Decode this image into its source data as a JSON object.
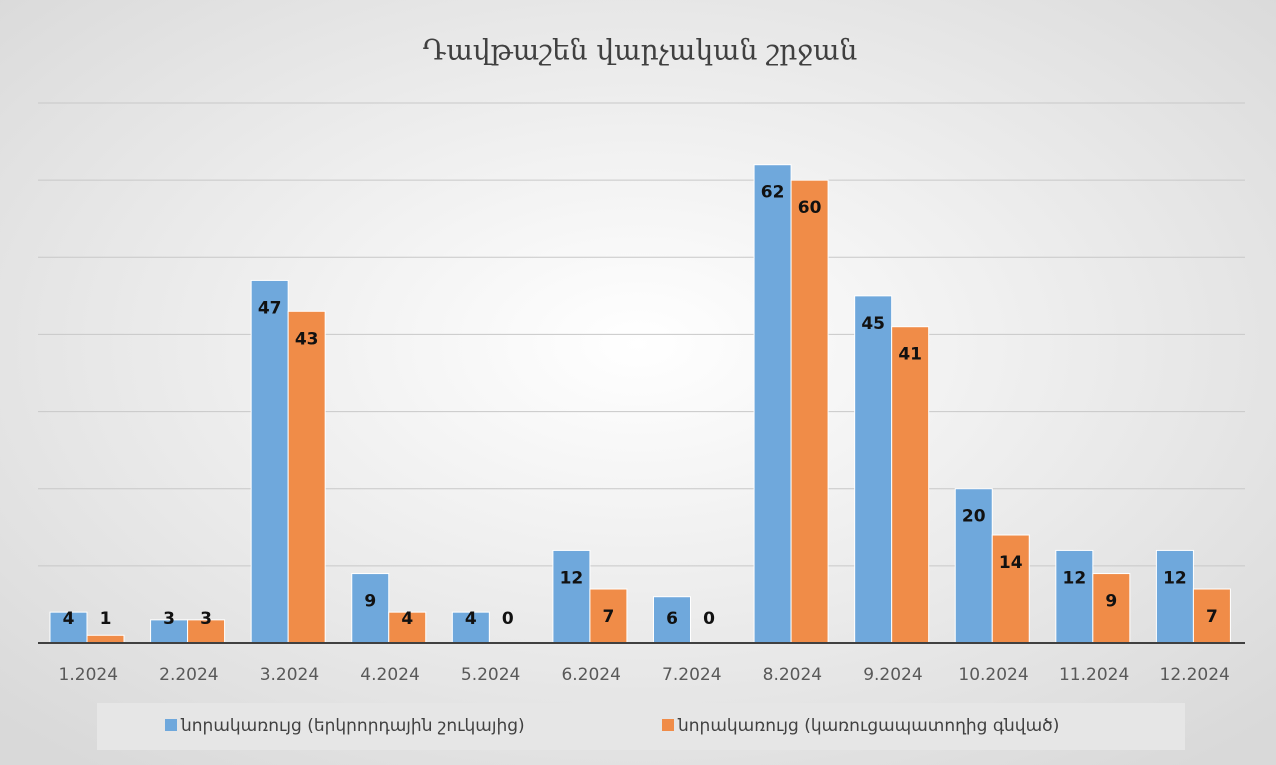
{
  "chart_data": {
    "type": "bar",
    "title": "Դավթաշեն վարչական շրջան",
    "categories": [
      "1.2024",
      "2.2024",
      "3.2024",
      "4.2024",
      "5.2024",
      "6.2024",
      "7.2024",
      "8.2024",
      "9.2024",
      "10.2024",
      "11.2024",
      "12.2024"
    ],
    "series": [
      {
        "name": "նորակառույց (երկրորդային շուկայից)",
        "color": "#6fa8dc",
        "values": [
          4,
          3,
          47,
          9,
          4,
          12,
          6,
          62,
          45,
          20,
          12,
          12
        ]
      },
      {
        "name": "նորակառույց (կառուցապատողից գնված)",
        "color": "#f08c48",
        "values": [
          1,
          3,
          43,
          4,
          0,
          7,
          0,
          60,
          41,
          14,
          9,
          7
        ]
      }
    ],
    "ylim": [
      0,
      70
    ],
    "yticks": [
      0,
      10,
      20,
      30,
      40,
      50,
      60,
      70
    ],
    "grid": true,
    "legend": "bottom"
  }
}
